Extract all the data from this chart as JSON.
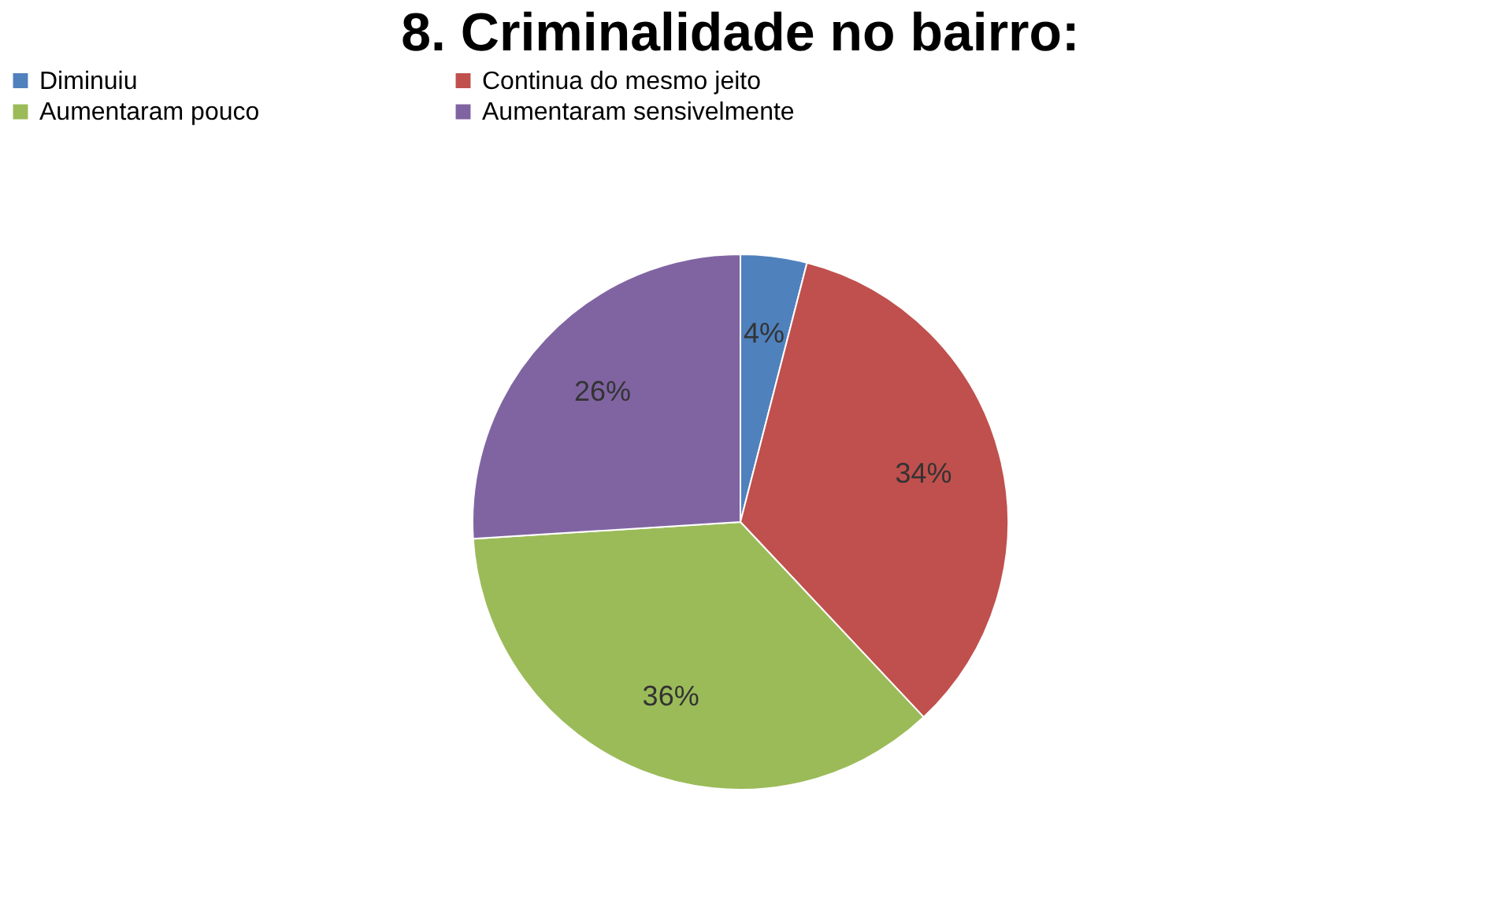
{
  "chart_data": {
    "type": "pie",
    "title": "8. Criminalidade no bairro:",
    "categories": [
      "Diminuiu",
      "Continua do mesmo jeito",
      "Aumentaram pouco",
      "Aumentaram sensivelmente"
    ],
    "values": [
      4,
      34,
      36,
      26
    ],
    "colors": [
      "#4f81bd",
      "#c0504d",
      "#9bbb59",
      "#8064a2"
    ],
    "value_labels": [
      "4%",
      "34%",
      "36%",
      "26%"
    ],
    "legend": "top"
  }
}
